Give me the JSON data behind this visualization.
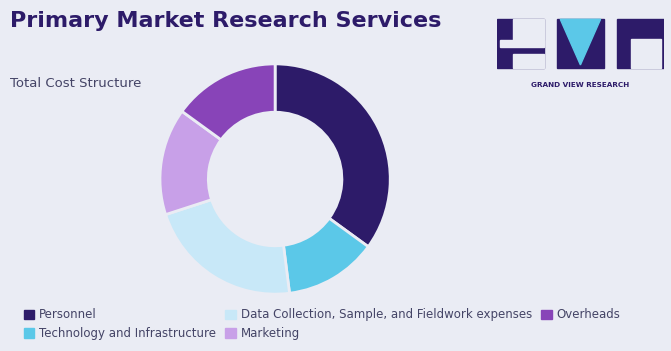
{
  "title": "Primary Market Research Services",
  "subtitle": "Total Cost Structure",
  "background_color": "#eaecf4",
  "segments": [
    {
      "label": "Personnel",
      "value": 35,
      "color": "#2d1b69"
    },
    {
      "label": "Technology and Infrastructure",
      "value": 13,
      "color": "#5bc8e8"
    },
    {
      "label": "Data Collection, Sample, and Fieldwork expenses",
      "value": 22,
      "color": "#c8e8f8"
    },
    {
      "label": "Marketing",
      "value": 15,
      "color": "#c8a0e8"
    },
    {
      "label": "Overheads",
      "value": 15,
      "color": "#8844b8"
    }
  ],
  "donut_width": 0.42,
  "legend_font_size": 8.5,
  "title_font_size": 16,
  "subtitle_font_size": 9.5,
  "title_color": "#2d1b69",
  "subtitle_color": "#444466",
  "logo_bg_color": "#2d1b69",
  "logo_triangle_color": "#5bc8e8",
  "logo_text_color": "#2d1b69"
}
